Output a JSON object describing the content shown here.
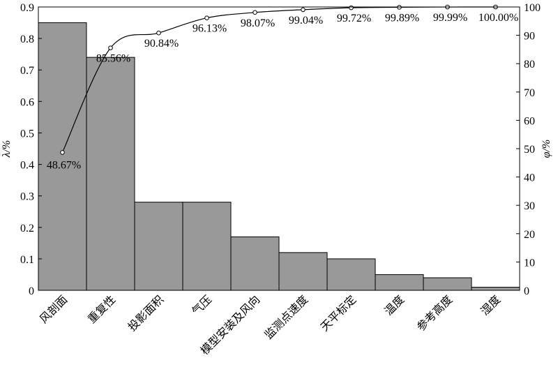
{
  "chart_data": {
    "type": "bar",
    "categories": [
      "风剖面",
      "重复性",
      "投影面积",
      "气压",
      "模型安装及风向",
      "监测点速度",
      "天平标定",
      "温度",
      "参考高度",
      "湿度"
    ],
    "series": [
      {
        "type": "bar",
        "color": "#999999",
        "values": [
          0.85,
          0.74,
          0.28,
          0.28,
          0.17,
          0.12,
          0.1,
          0.05,
          0.04,
          0.01
        ]
      },
      {
        "type": "line",
        "color": "#000000",
        "axis": "y2",
        "values": [
          48.67,
          85.56,
          90.84,
          96.13,
          98.07,
          99.04,
          99.72,
          99.89,
          99.99,
          100.0
        ],
        "value_labels": [
          "48.67%",
          "85.56%",
          "90.84%",
          "96.13%",
          "98.07%",
          "99.04%",
          "99.72%",
          "99.89%",
          "99.99%",
          "100.00%"
        ]
      }
    ],
    "y_label": "λ/%",
    "y2_label": "φ/%",
    "ylim": [
      0,
      0.9
    ],
    "yticks": [
      0,
      0.1,
      0.2,
      0.3,
      0.4,
      0.5,
      0.6,
      0.7,
      0.8,
      0.9
    ],
    "y2lim": [
      0,
      100
    ],
    "y2ticks": [
      0,
      10,
      20,
      30,
      40,
      50,
      60,
      70,
      80,
      90,
      100
    ]
  }
}
